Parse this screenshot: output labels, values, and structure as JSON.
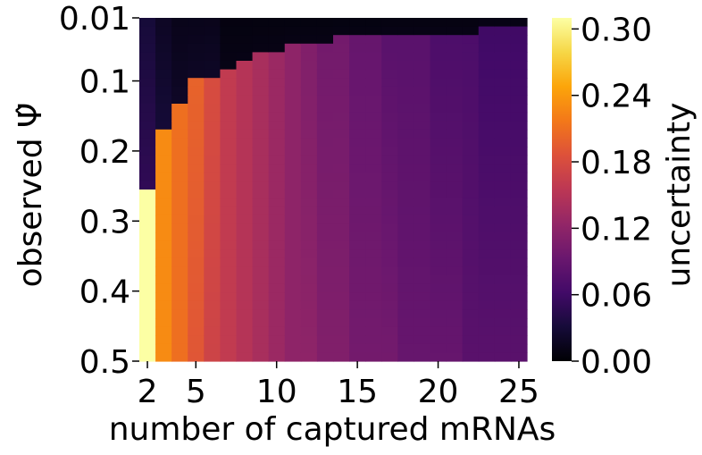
{
  "chart_data": {
    "type": "heatmap",
    "title": "",
    "xlabel": "number of captured mRNAs",
    "ylabel": "observed Ψ̂",
    "colorbar_label": "uncertainty",
    "colormap": "inferno",
    "x_values": [
      2,
      3,
      4,
      5,
      6,
      7,
      8,
      9,
      10,
      11,
      12,
      13,
      14,
      15,
      16,
      17,
      18,
      19,
      20,
      21,
      22,
      23,
      24,
      25
    ],
    "xticks": [
      "2",
      "5",
      "10",
      "15",
      "20",
      "25"
    ],
    "xtick_values": [
      2,
      5,
      10,
      15,
      20,
      25
    ],
    "yticks": [
      "0.01",
      "0.1",
      "0.2",
      "0.3",
      "0.4",
      "0.5"
    ],
    "ytick_values": [
      0.01,
      0.1,
      0.2,
      0.3,
      0.4,
      0.5
    ],
    "ylim": [
      0.01,
      0.5
    ],
    "y_direction": "increasing downward",
    "colorbar_ticks": [
      "0.00",
      "0.06",
      "0.12",
      "0.18",
      "0.24",
      "0.30"
    ],
    "colorbar_range": [
      0.0,
      0.31
    ],
    "transition_psi": [
      0.26,
      0.17,
      0.13,
      0.1,
      0.09,
      0.08,
      0.07,
      0.06,
      0.06,
      0.05,
      0.05,
      0.05,
      0.04,
      0.04,
      0.04,
      0.03,
      0.03,
      0.03,
      0.03,
      0.03,
      0.03,
      0.02,
      0.02,
      0.02
    ],
    "high_value_at_transition": [
      0.31,
      0.23,
      0.21,
      0.2,
      0.18,
      0.16,
      0.15,
      0.14,
      0.13,
      0.12,
      0.11,
      0.1,
      0.1,
      0.09,
      0.09,
      0.08,
      0.08,
      0.08,
      0.07,
      0.07,
      0.07,
      0.06,
      0.06,
      0.06
    ],
    "low_value_before_transition": [
      0.05,
      0.03,
      0.02,
      0.02,
      0.02,
      0.01,
      0.01,
      0.01,
      0.01,
      0.01,
      0.01,
      0.01,
      0.01,
      0.01,
      0.01,
      0.01,
      0.01,
      0.01,
      0.01,
      0.01,
      0.01,
      0.01,
      0.01,
      0.01
    ],
    "value_at_psi_0.5": [
      0.31,
      0.23,
      0.21,
      0.19,
      0.17,
      0.16,
      0.15,
      0.14,
      0.13,
      0.12,
      0.12,
      0.11,
      0.11,
      0.1,
      0.1,
      0.1,
      0.09,
      0.09,
      0.09,
      0.09,
      0.08,
      0.08,
      0.08,
      0.08
    ]
  }
}
